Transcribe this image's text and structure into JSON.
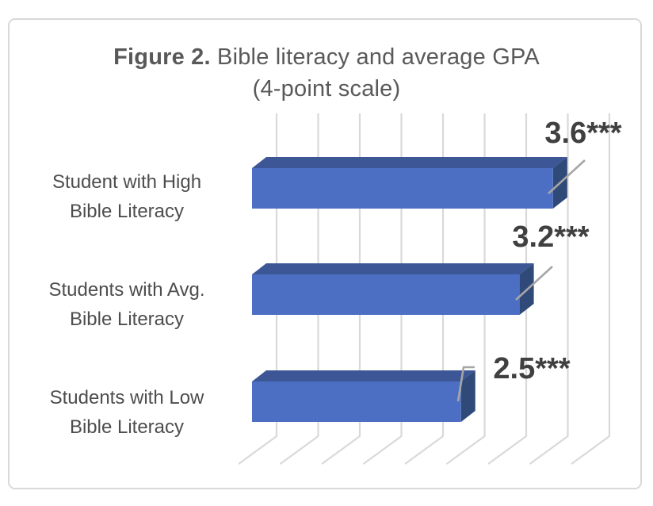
{
  "title": {
    "bold": "Figure 2.",
    "rest": " Bible literacy and average GPA",
    "line2": "(4-point scale)"
  },
  "chart_data": {
    "type": "bar",
    "orientation": "horizontal",
    "effect": "3d",
    "title": "Figure 2. Bible literacy and average GPA (4-point scale)",
    "categories": [
      "Student with High Bible Literacy",
      "Students with Avg. Bible Literacy",
      "Students with Low Bible Literacy"
    ],
    "category_lines": [
      [
        "Student with High",
        "Bible Literacy"
      ],
      [
        "Students with Avg.",
        "Bible Literacy"
      ],
      [
        "Students with Low",
        "Bible Literacy"
      ]
    ],
    "values": [
      3.6,
      3.2,
      2.5
    ],
    "data_labels": [
      "3.6***",
      "3.2***",
      "2.5***"
    ],
    "xlabel": "",
    "ylabel": "",
    "xlim": [
      0,
      4.5
    ],
    "major_unit": 0.5,
    "grid": true,
    "legend": false,
    "colors": {
      "bar_front": "#4C6FC4",
      "bar_top": "#3D5695",
      "bar_side": "#2F4979",
      "gridline": "#D9D9D9",
      "leader_line": "#A6A6A6",
      "title_text": "#595959",
      "category_text": "#4D4D4D",
      "data_label_text": "#404040",
      "border": "#D9D9D9"
    }
  }
}
